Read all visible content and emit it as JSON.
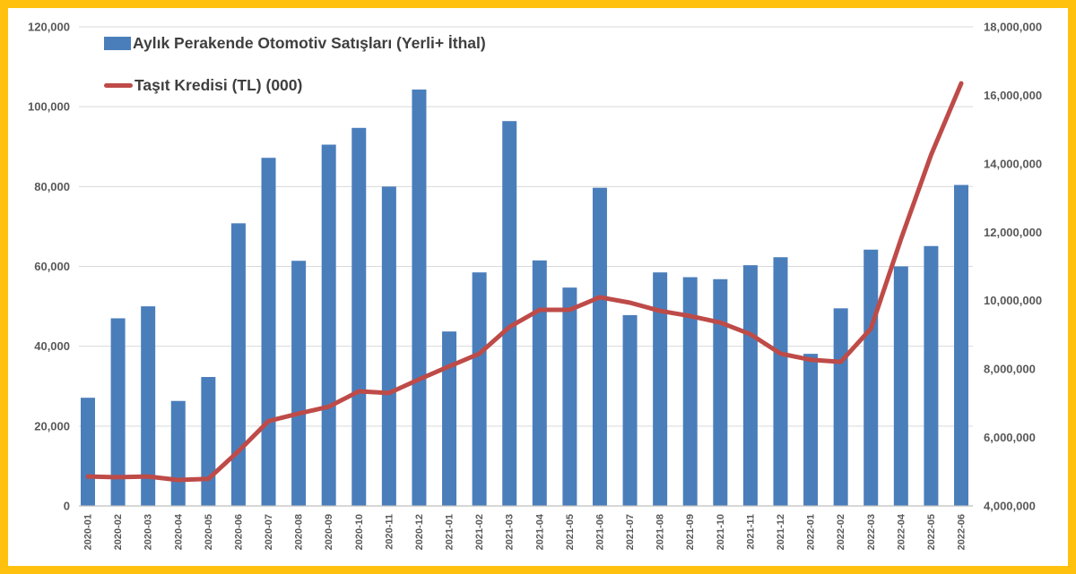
{
  "frame": {
    "border_color": "#FFC10D",
    "background": "#FFFFFF"
  },
  "legend": {
    "position": "top-left",
    "items": [
      {
        "label": "Aylık Perakende Otomotiv Satışları (Yerli+ İthal)",
        "swatch": "bar-swatch",
        "color": "#4A7EBB"
      },
      {
        "label": "Taşıt Kredisi (TL) (000)",
        "swatch": "line-swatch",
        "color": "#BE4B48"
      }
    ]
  },
  "chart_data": {
    "type": "combo",
    "grid": true,
    "legend_position": "top-left",
    "categories": [
      "2020-01",
      "2020-02",
      "2020-03",
      "2020-04",
      "2020-05",
      "2020-06",
      "2020-07",
      "2020-08",
      "2020-09",
      "2020-10",
      "2020-11",
      "2020-12",
      "2021-01",
      "2021-02",
      "2021-03",
      "2021-04",
      "2021-05",
      "2021-06",
      "2021-07",
      "2021-08",
      "2021-09",
      "2021-10",
      "2021-11",
      "2021-12",
      "2022-01",
      "2022-02",
      "2022-03",
      "2022-04",
      "2022-05",
      "2022-06"
    ],
    "series": [
      {
        "name": "Aylık Perakende Otomotiv Satışları (Yerli+ İthal)",
        "type": "bar",
        "axis": "left",
        "color": "#4A7EBB",
        "values": [
          27100,
          47000,
          50000,
          26300,
          32300,
          70800,
          87200,
          61400,
          90500,
          94700,
          80000,
          104300,
          43700,
          58500,
          96400,
          61500,
          54700,
          79700,
          47800,
          58500,
          57300,
          56800,
          60300,
          62300,
          38100,
          49500,
          64200,
          60000,
          65100,
          80400
        ]
      },
      {
        "name": "Taşıt Kredisi (TL) (000)",
        "type": "line",
        "axis": "right",
        "color": "#BE4B48",
        "values": [
          4860000,
          4840000,
          4860000,
          4760000,
          4790000,
          5600000,
          6480000,
          6700000,
          6900000,
          7350000,
          7300000,
          7700000,
          8080000,
          8450000,
          9230000,
          9730000,
          9730000,
          10100000,
          9940000,
          9700000,
          9550000,
          9360000,
          9020000,
          8450000,
          8270000,
          8210000,
          9180000,
          11800000,
          14260000,
          16350000
        ]
      }
    ],
    "left_axis": {
      "min": 0,
      "max": 120000,
      "step": 20000,
      "tick_labels": [
        "0",
        "20,000",
        "40,000",
        "60,000",
        "80,000",
        "100,000",
        "120,000"
      ]
    },
    "right_axis": {
      "min": 4000000,
      "max": 18000000,
      "step": 2000000,
      "tick_labels": [
        "4,000,000",
        "6,000,000",
        "8,000,000",
        "10,000,000",
        "12,000,000",
        "14,000,000",
        "16,000,000",
        "18,000,000"
      ]
    },
    "colors": {
      "gridline": "#D9D9D9",
      "axis_line": "#BFBFBF",
      "tick_text": "#595959"
    }
  }
}
